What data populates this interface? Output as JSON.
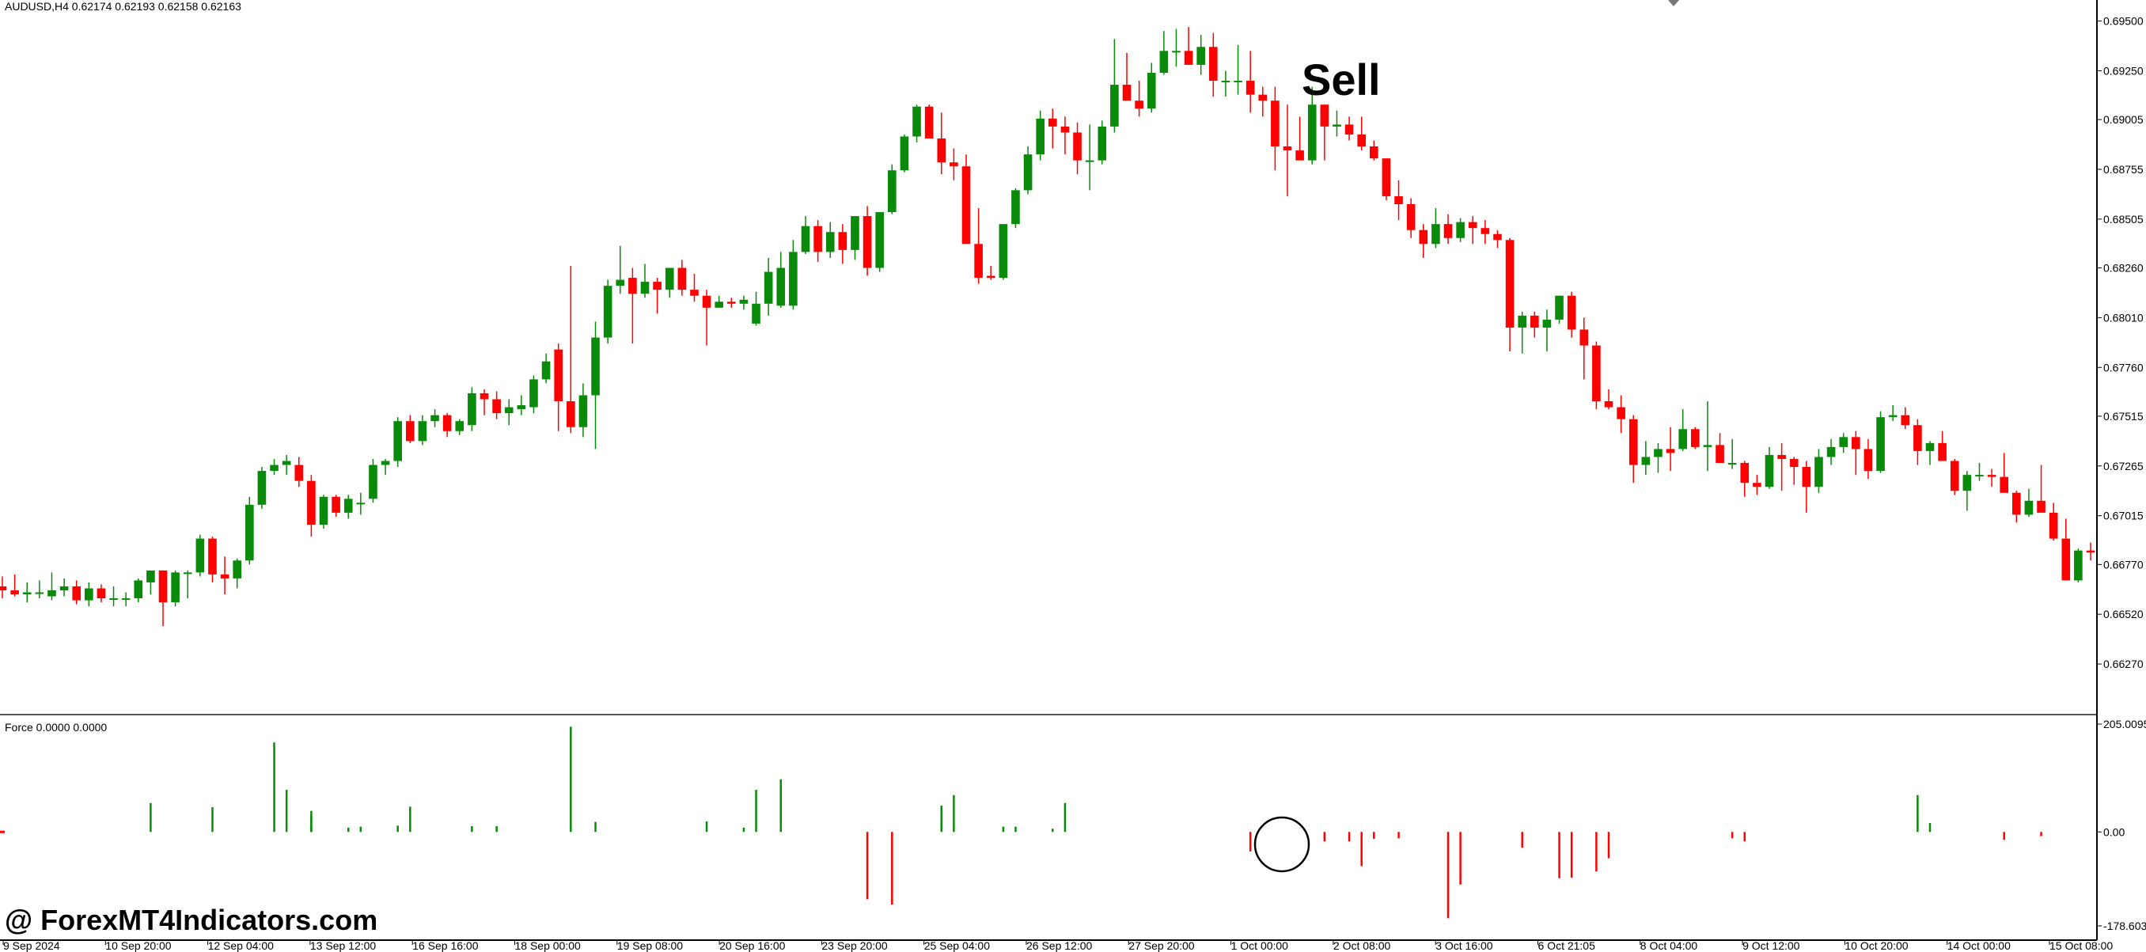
{
  "header": {
    "symbol_info": "AUDUSD,H4  0.62174 0.62193 0.62158 0.62163",
    "indicator_info": "Force 0.0000 0.0000",
    "sell_label": "Sell",
    "watermark": "@ ForexMT4Indicators.com"
  },
  "colors": {
    "bull": "#0a8a0a",
    "bear": "#ff0000",
    "axis": "#000000",
    "background": "#ffffff"
  },
  "chart_data": [
    {
      "type": "candlestick",
      "title": "AUDUSD,H4",
      "ohlc_header": [
        0.62174,
        0.62193,
        0.62158,
        0.62163
      ],
      "y_ticks": [
        "0.69500",
        "0.69250",
        "0.69005",
        "0.68755",
        "0.68505",
        "0.68260",
        "0.68010",
        "0.67760",
        "0.67515",
        "0.67265",
        "0.67015",
        "0.66770",
        "0.66520",
        "0.66270"
      ],
      "ylim": [
        0.66155,
        0.6955
      ],
      "x_ticks": [
        "9 Sep 2024",
        "10 Sep 20:00",
        "12 Sep 04:00",
        "13 Sep 12:00",
        "16 Sep 16:00",
        "18 Sep 00:00",
        "19 Sep 08:00",
        "20 Sep 16:00",
        "23 Sep 20:00",
        "25 Sep 04:00",
        "26 Sep 12:00",
        "27 Sep 20:00",
        "1 Oct 00:00",
        "2 Oct 08:00",
        "3 Oct 16:00",
        "6 Oct 21:05",
        "8 Oct 04:00",
        "9 Oct 12:00",
        "10 Oct 20:00",
        "14 Oct 00:00",
        "15 Oct 08:00"
      ],
      "annotations": [
        "Sell"
      ],
      "grid": false,
      "candles_ohlc": [
        [
          0.6666,
          0.6671,
          0.666,
          0.6664
        ],
        [
          0.6664,
          0.6672,
          0.6661,
          0.6662
        ],
        [
          0.6662,
          0.6668,
          0.6658,
          0.6663
        ],
        [
          0.6663,
          0.6669,
          0.666,
          0.6663
        ],
        [
          0.6661,
          0.6673,
          0.6659,
          0.6664
        ],
        [
          0.6664,
          0.667,
          0.6661,
          0.6666
        ],
        [
          0.6666,
          0.6669,
          0.6657,
          0.6659
        ],
        [
          0.6659,
          0.6668,
          0.6656,
          0.6665
        ],
        [
          0.6665,
          0.6667,
          0.6658,
          0.666
        ],
        [
          0.666,
          0.6666,
          0.6656,
          0.666
        ],
        [
          0.666,
          0.6663,
          0.6656,
          0.666
        ],
        [
          0.666,
          0.667,
          0.6658,
          0.6669
        ],
        [
          0.6668,
          0.6673,
          0.6662,
          0.6674
        ],
        [
          0.6674,
          0.6674,
          0.6646,
          0.6658
        ],
        [
          0.6658,
          0.6674,
          0.6656,
          0.6673
        ],
        [
          0.6673,
          0.6674,
          0.666,
          0.6673
        ],
        [
          0.6673,
          0.6692,
          0.6671,
          0.669
        ],
        [
          0.669,
          0.6691,
          0.6668,
          0.6672
        ],
        [
          0.6672,
          0.6681,
          0.6662,
          0.667
        ],
        [
          0.667,
          0.668,
          0.6665,
          0.6679
        ],
        [
          0.6679,
          0.6711,
          0.6677,
          0.6707
        ],
        [
          0.6707,
          0.6726,
          0.6705,
          0.6724
        ],
        [
          0.6724,
          0.673,
          0.6722,
          0.6727
        ],
        [
          0.6727,
          0.6732,
          0.6722,
          0.6729
        ],
        [
          0.6727,
          0.6731,
          0.6716,
          0.6719
        ],
        [
          0.6719,
          0.6722,
          0.6691,
          0.6697
        ],
        [
          0.6697,
          0.6712,
          0.6695,
          0.6711
        ],
        [
          0.6711,
          0.6712,
          0.6701,
          0.6703
        ],
        [
          0.6703,
          0.6712,
          0.67,
          0.671
        ],
        [
          0.6708,
          0.6713,
          0.6702,
          0.6708
        ],
        [
          0.671,
          0.673,
          0.6708,
          0.6727
        ],
        [
          0.6727,
          0.673,
          0.6722,
          0.6729
        ],
        [
          0.6729,
          0.6751,
          0.6726,
          0.6749
        ],
        [
          0.6749,
          0.6752,
          0.6738,
          0.6739
        ],
        [
          0.6739,
          0.6752,
          0.6737,
          0.6749
        ],
        [
          0.6749,
          0.6755,
          0.6746,
          0.6752
        ],
        [
          0.6752,
          0.6753,
          0.6741,
          0.6744
        ],
        [
          0.6744,
          0.675,
          0.6742,
          0.6749
        ],
        [
          0.6747,
          0.6766,
          0.6744,
          0.6763
        ],
        [
          0.6763,
          0.6765,
          0.6752,
          0.676
        ],
        [
          0.676,
          0.6764,
          0.675,
          0.6753
        ],
        [
          0.6753,
          0.676,
          0.6747,
          0.6756
        ],
        [
          0.6755,
          0.6762,
          0.6752,
          0.6757
        ],
        [
          0.6756,
          0.6772,
          0.6753,
          0.677
        ],
        [
          0.677,
          0.6783,
          0.6768,
          0.6779
        ],
        [
          0.6785,
          0.6788,
          0.6744,
          0.6759
        ],
        [
          0.6759,
          0.6827,
          0.6743,
          0.6746
        ],
        [
          0.6746,
          0.6768,
          0.6741,
          0.6762
        ],
        [
          0.6762,
          0.6799,
          0.6735,
          0.6791
        ],
        [
          0.6791,
          0.682,
          0.6788,
          0.6817
        ],
        [
          0.6817,
          0.6837,
          0.6813,
          0.682
        ],
        [
          0.6821,
          0.6826,
          0.6788,
          0.6813
        ],
        [
          0.6813,
          0.6828,
          0.6811,
          0.6819
        ],
        [
          0.6819,
          0.6821,
          0.6803,
          0.6815
        ],
        [
          0.6815,
          0.6825,
          0.6811,
          0.6826
        ],
        [
          0.6826,
          0.683,
          0.6812,
          0.6815
        ],
        [
          0.6815,
          0.6823,
          0.6809,
          0.6812
        ],
        [
          0.6812,
          0.6815,
          0.6787,
          0.6806
        ],
        [
          0.6806,
          0.6812,
          0.6806,
          0.6809
        ],
        [
          0.6809,
          0.6811,
          0.6806,
          0.6808
        ],
        [
          0.6808,
          0.6812,
          0.6805,
          0.681
        ],
        [
          0.6798,
          0.6814,
          0.6797,
          0.6808
        ],
        [
          0.6808,
          0.6831,
          0.6802,
          0.6824
        ],
        [
          0.6807,
          0.6834,
          0.6806,
          0.6826
        ],
        [
          0.6807,
          0.684,
          0.6805,
          0.6834
        ],
        [
          0.6834,
          0.6852,
          0.6833,
          0.6847
        ],
        [
          0.6847,
          0.685,
          0.6829,
          0.6834
        ],
        [
          0.6834,
          0.6849,
          0.6831,
          0.6844
        ],
        [
          0.6844,
          0.6848,
          0.6828,
          0.6835
        ],
        [
          0.6835,
          0.6851,
          0.683,
          0.6852
        ],
        [
          0.6852,
          0.6857,
          0.6822,
          0.6826
        ],
        [
          0.6826,
          0.6854,
          0.6824,
          0.6854
        ],
        [
          0.6854,
          0.6878,
          0.6853,
          0.6875
        ],
        [
          0.6875,
          0.6893,
          0.6874,
          0.6892
        ],
        [
          0.6892,
          0.6908,
          0.6889,
          0.6907
        ],
        [
          0.6907,
          0.6908,
          0.6892,
          0.6891
        ],
        [
          0.6891,
          0.6904,
          0.6873,
          0.6879
        ],
        [
          0.6879,
          0.6886,
          0.687,
          0.6877
        ],
        [
          0.6877,
          0.6883,
          0.6846,
          0.6838
        ],
        [
          0.6838,
          0.6856,
          0.6818,
          0.6821
        ],
        [
          0.6822,
          0.6827,
          0.682,
          0.6821
        ],
        [
          0.6821,
          0.6842,
          0.682,
          0.6848
        ],
        [
          0.6848,
          0.6866,
          0.6846,
          0.6865
        ],
        [
          0.6865,
          0.6887,
          0.6863,
          0.6883
        ],
        [
          0.6883,
          0.6905,
          0.688,
          0.6901
        ],
        [
          0.6901,
          0.6906,
          0.6886,
          0.6897
        ],
        [
          0.6897,
          0.6902,
          0.6883,
          0.6894
        ],
        [
          0.6894,
          0.6899,
          0.6873,
          0.688
        ],
        [
          0.688,
          0.6898,
          0.6865,
          0.688
        ],
        [
          0.688,
          0.69,
          0.6878,
          0.6897
        ],
        [
          0.6897,
          0.6941,
          0.6894,
          0.6918
        ],
        [
          0.6918,
          0.6934,
          0.691,
          0.691
        ],
        [
          0.691,
          0.692,
          0.6902,
          0.6906
        ],
        [
          0.6906,
          0.6929,
          0.6904,
          0.6924
        ],
        [
          0.6924,
          0.6945,
          0.6923,
          0.6935
        ],
        [
          0.6935,
          0.6946,
          0.6927,
          0.6935
        ],
        [
          0.6935,
          0.6947,
          0.693,
          0.6928
        ],
        [
          0.6928,
          0.6943,
          0.6923,
          0.6937
        ],
        [
          0.6937,
          0.6944,
          0.6912,
          0.692
        ],
        [
          0.692,
          0.6925,
          0.6912,
          0.692
        ],
        [
          0.692,
          0.6938,
          0.6913,
          0.692
        ],
        [
          0.692,
          0.6935,
          0.6904,
          0.6913
        ],
        [
          0.6913,
          0.6917,
          0.6902,
          0.691
        ],
        [
          0.691,
          0.6917,
          0.6875,
          0.6887
        ],
        [
          0.6887,
          0.6908,
          0.6862,
          0.6885
        ],
        [
          0.6885,
          0.6902,
          0.6884,
          0.688
        ],
        [
          0.688,
          0.6917,
          0.6878,
          0.6908
        ],
        [
          0.6908,
          0.6908,
          0.688,
          0.6897
        ],
        [
          0.6897,
          0.6905,
          0.6892,
          0.6898
        ],
        [
          0.6898,
          0.6902,
          0.689,
          0.6893
        ],
        [
          0.6893,
          0.6902,
          0.6885,
          0.6887
        ],
        [
          0.6887,
          0.689,
          0.688,
          0.6881
        ],
        [
          0.6881,
          0.6881,
          0.686,
          0.6862
        ],
        [
          0.6862,
          0.687,
          0.685,
          0.6858
        ],
        [
          0.6858,
          0.6861,
          0.6841,
          0.6845
        ],
        [
          0.6845,
          0.6848,
          0.6831,
          0.6838
        ],
        [
          0.6838,
          0.6856,
          0.6836,
          0.6848
        ],
        [
          0.6848,
          0.6853,
          0.6838,
          0.6841
        ],
        [
          0.6841,
          0.6851,
          0.6839,
          0.6849
        ],
        [
          0.6849,
          0.6852,
          0.6838,
          0.6846
        ],
        [
          0.6846,
          0.685,
          0.6838,
          0.6843
        ],
        [
          0.6843,
          0.6845,
          0.6836,
          0.684
        ],
        [
          0.684,
          0.6841,
          0.6784,
          0.6796
        ],
        [
          0.6796,
          0.6804,
          0.6783,
          0.6802
        ],
        [
          0.6802,
          0.6804,
          0.6791,
          0.6796
        ],
        [
          0.6796,
          0.6805,
          0.6784,
          0.68
        ],
        [
          0.68,
          0.6812,
          0.6798,
          0.6812
        ],
        [
          0.6812,
          0.6814,
          0.6791,
          0.6795
        ],
        [
          0.6795,
          0.6801,
          0.677,
          0.6787
        ],
        [
          0.6787,
          0.6789,
          0.6755,
          0.6759
        ],
        [
          0.6759,
          0.6765,
          0.6755,
          0.6756
        ],
        [
          0.6756,
          0.6762,
          0.6743,
          0.675
        ],
        [
          0.675,
          0.6752,
          0.6718,
          0.6727
        ],
        [
          0.6727,
          0.6739,
          0.6722,
          0.6731
        ],
        [
          0.6731,
          0.6738,
          0.6723,
          0.6735
        ],
        [
          0.6735,
          0.6746,
          0.6724,
          0.6733
        ],
        [
          0.6735,
          0.6755,
          0.6734,
          0.6745
        ],
        [
          0.6745,
          0.6746,
          0.6735,
          0.6736
        ],
        [
          0.6736,
          0.6759,
          0.6724,
          0.6737
        ],
        [
          0.6737,
          0.6743,
          0.6728,
          0.6728
        ],
        [
          0.6728,
          0.674,
          0.6725,
          0.6728
        ],
        [
          0.6728,
          0.6729,
          0.6711,
          0.6718
        ],
        [
          0.6718,
          0.6722,
          0.6712,
          0.6716
        ],
        [
          0.6716,
          0.6736,
          0.6715,
          0.6732
        ],
        [
          0.6732,
          0.6738,
          0.6714,
          0.673
        ],
        [
          0.673,
          0.6731,
          0.6717,
          0.6726
        ],
        [
          0.6726,
          0.6729,
          0.6703,
          0.6716
        ],
        [
          0.6716,
          0.6735,
          0.6713,
          0.6731
        ],
        [
          0.6731,
          0.674,
          0.6727,
          0.6736
        ],
        [
          0.6736,
          0.6743,
          0.6733,
          0.6741
        ],
        [
          0.6741,
          0.6744,
          0.6722,
          0.6735
        ],
        [
          0.6735,
          0.674,
          0.672,
          0.6724
        ],
        [
          0.6724,
          0.6754,
          0.6723,
          0.6751
        ],
        [
          0.6751,
          0.6757,
          0.6749,
          0.6752
        ],
        [
          0.6752,
          0.6756,
          0.6745,
          0.6747
        ],
        [
          0.6747,
          0.675,
          0.6727,
          0.6734
        ],
        [
          0.6734,
          0.6739,
          0.6727,
          0.6738
        ],
        [
          0.6738,
          0.6744,
          0.673,
          0.6729
        ],
        [
          0.6729,
          0.673,
          0.6712,
          0.6714
        ],
        [
          0.6714,
          0.6724,
          0.6704,
          0.6722
        ],
        [
          0.6722,
          0.6728,
          0.6719,
          0.6722
        ],
        [
          0.6722,
          0.6725,
          0.6716,
          0.6721
        ],
        [
          0.6721,
          0.6733,
          0.6714,
          0.6713
        ],
        [
          0.6713,
          0.6714,
          0.6698,
          0.6702
        ],
        [
          0.6702,
          0.6715,
          0.6701,
          0.6709
        ],
        [
          0.6709,
          0.6727,
          0.6705,
          0.6703
        ],
        [
          0.6703,
          0.6708,
          0.6689,
          0.669
        ],
        [
          0.669,
          0.67,
          0.6671,
          0.6669
        ],
        [
          0.6669,
          0.6685,
          0.6668,
          0.6684
        ],
        [
          0.6684,
          0.6688,
          0.6679,
          0.6683
        ]
      ]
    },
    {
      "type": "histogram",
      "title": "Force 0.0000 0.0000",
      "y_ticks": [
        "205.0095",
        "0.00",
        "-178.6034"
      ],
      "ylim": [
        -178.6034,
        205.0095
      ],
      "bars": [
        {
          "i": 12,
          "v": 55
        },
        {
          "i": 17,
          "v": 47
        },
        {
          "i": 22,
          "v": 170
        },
        {
          "i": 23,
          "v": 80
        },
        {
          "i": 25,
          "v": 30
        },
        {
          "i": 25,
          "v": 40
        },
        {
          "i": 28,
          "v": 8
        },
        {
          "i": 29,
          "v": 10
        },
        {
          "i": 32,
          "v": 12
        },
        {
          "i": 33,
          "v": 48
        },
        {
          "i": 38,
          "v": 11
        },
        {
          "i": 40,
          "v": 11
        },
        {
          "i": 46,
          "v": 200
        },
        {
          "i": 48,
          "v": 19
        },
        {
          "i": 57,
          "v": 20
        },
        {
          "i": 60,
          "v": 8
        },
        {
          "i": 61,
          "v": 80
        },
        {
          "i": 63,
          "v": 100
        },
        {
          "i": 70,
          "v": -128
        },
        {
          "i": 72,
          "v": -138
        },
        {
          "i": 76,
          "v": 50
        },
        {
          "i": 77,
          "v": 70
        },
        {
          "i": 81,
          "v": 10
        },
        {
          "i": 82,
          "v": 10
        },
        {
          "i": 85,
          "v": 6
        },
        {
          "i": 86,
          "v": 55
        },
        {
          "i": 101,
          "v": -37
        },
        {
          "i": 107,
          "v": -18
        },
        {
          "i": 109,
          "v": -18
        },
        {
          "i": 110,
          "v": -65
        },
        {
          "i": 111,
          "v": -13
        },
        {
          "i": 113,
          "v": -12
        },
        {
          "i": 117,
          "v": -164
        },
        {
          "i": 118,
          "v": -100
        },
        {
          "i": 123,
          "v": -30
        },
        {
          "i": 126,
          "v": -88
        },
        {
          "i": 127,
          "v": -87
        },
        {
          "i": 129,
          "v": -75
        },
        {
          "i": 130,
          "v": -50
        },
        {
          "i": 140,
          "v": -12
        },
        {
          "i": 141,
          "v": -18
        },
        {
          "i": 155,
          "v": 70
        },
        {
          "i": 156,
          "v": 17
        },
        {
          "i": 162,
          "v": -15
        },
        {
          "i": 165,
          "v": -8
        }
      ]
    }
  ]
}
